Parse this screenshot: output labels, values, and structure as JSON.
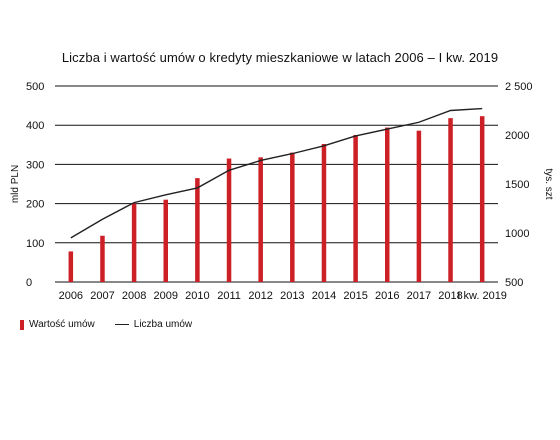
{
  "chart_data": {
    "type": "bar+line",
    "title": "Liczba i wartość umów o kredyty mieszkaniowe w latach 2006 – I kw. 2019",
    "categories": [
      "2006",
      "2007",
      "2008",
      "2009",
      "2010",
      "2011",
      "2012",
      "2013",
      "2014",
      "2015",
      "2016",
      "2017",
      "2018",
      "I kw. 2019"
    ],
    "series": [
      {
        "name": "Wartość umów",
        "kind": "bar",
        "axis": "left",
        "values": [
          78,
          118,
          200,
          210,
          265,
          315,
          318,
          330,
          352,
          375,
          394,
          386,
          418,
          423
        ]
      },
      {
        "name": "Liczba umów",
        "kind": "line",
        "axis": "right",
        "values": [
          950,
          1140,
          1310,
          1390,
          1460,
          1640,
          1740,
          1810,
          1890,
          1990,
          2060,
          2130,
          2250,
          2270
        ]
      }
    ],
    "y_left": {
      "label": "mld PLN",
      "ylim": [
        0,
        500
      ],
      "ticks": [
        "0",
        "100",
        "200",
        "300",
        "400",
        "500"
      ]
    },
    "y_right": {
      "label": "tys. szt",
      "ylim": [
        500,
        2500
      ],
      "ticks": [
        "500",
        "1000",
        "1500",
        "2000",
        "2 500"
      ]
    },
    "grid": true,
    "legend_position": "bottom-left",
    "colors": {
      "bar": "#cc1f26",
      "line": "#222222",
      "grid": "#111111"
    }
  }
}
